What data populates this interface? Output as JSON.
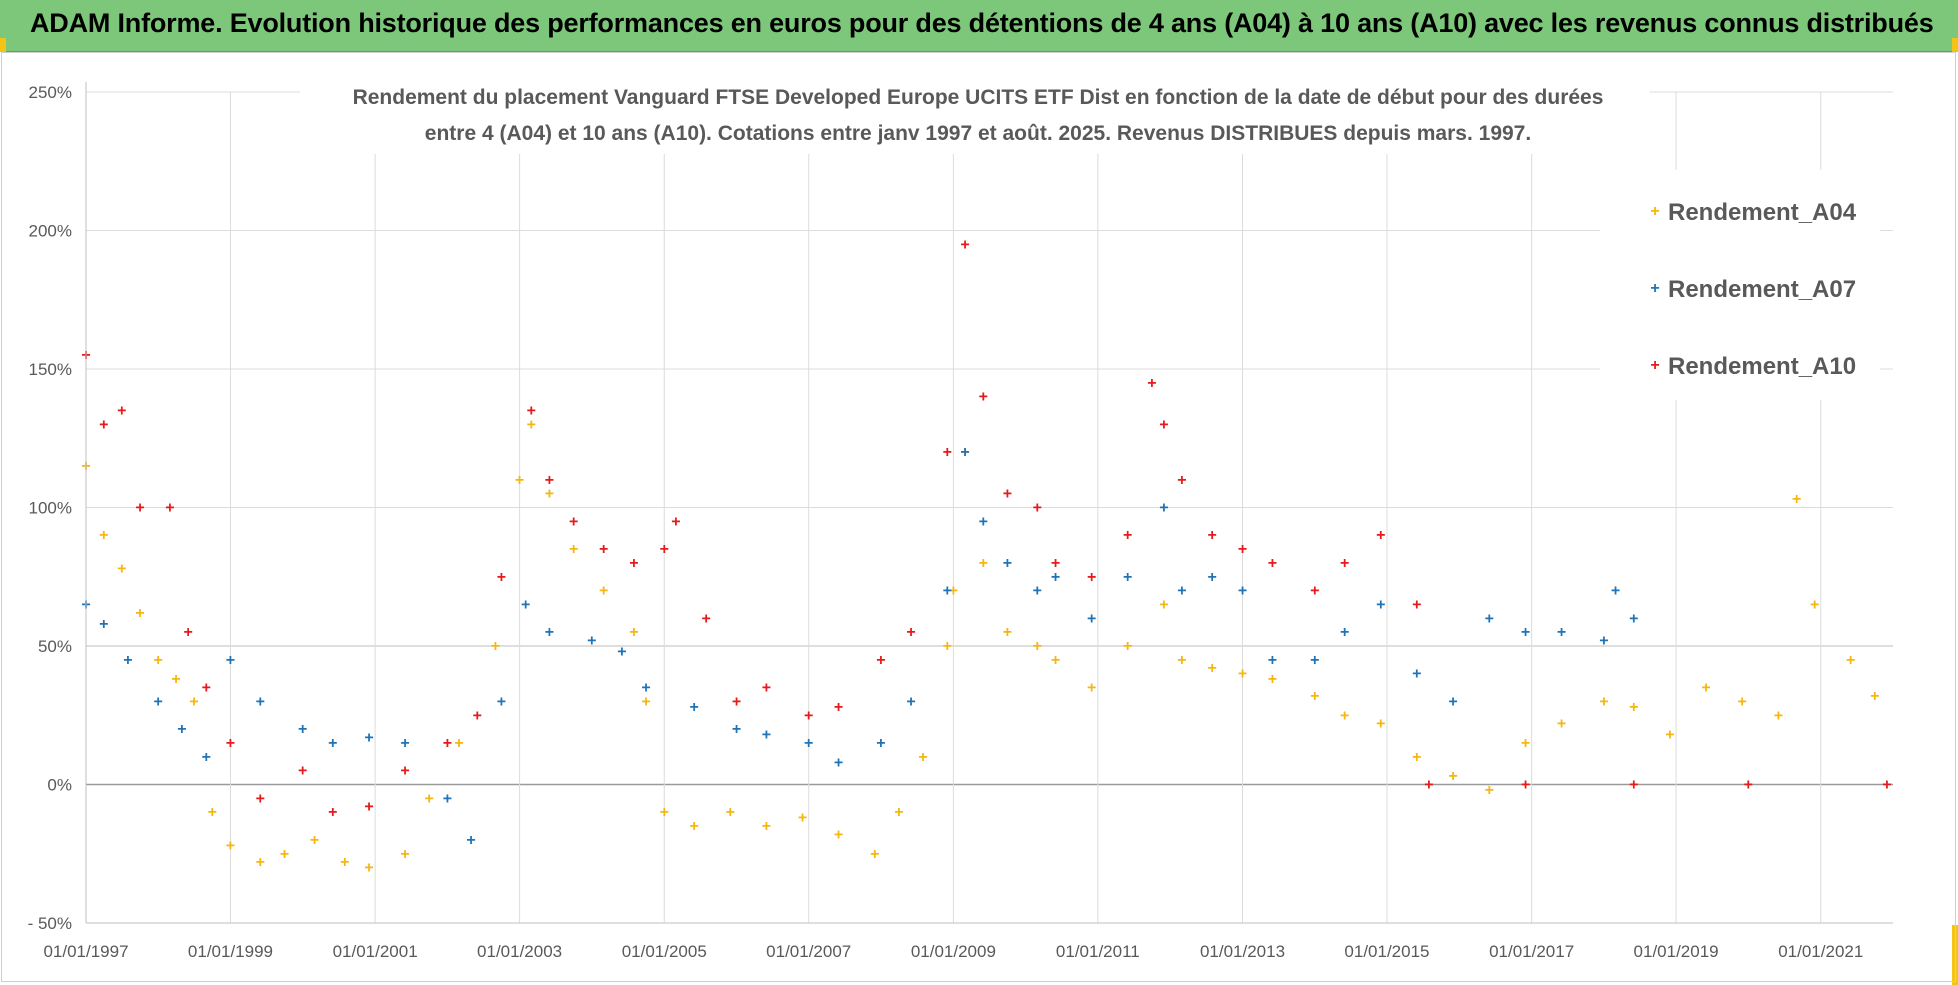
{
  "banner": {
    "title": "ADAM Informe. Evolution historique des performances en euros pour des détentions de 4 ans (A04) à 10 ans (A10) avec les revenus connus distribués",
    "background": "#7dc77a"
  },
  "chart_data": {
    "type": "scatter",
    "title_lines": [
      "Rendement du placement Vanguard FTSE Developed Europe UCITS ETF Dist en fonction de la date de début pour des durées",
      "entre 4 (A04) et 10 ans (A10). Cotations entre janv 1997 et août. 2025. Revenus DISTRIBUES depuis mars. 1997."
    ],
    "x_axis": {
      "type": "date",
      "range": [
        "1997-01-01",
        "2022-01-01"
      ],
      "tick_labels": [
        "01/01/1997",
        "01/01/1999",
        "01/01/2001",
        "01/01/2003",
        "01/01/2005",
        "01/01/2007",
        "01/01/2009",
        "01/01/2011",
        "01/01/2013",
        "01/01/2015",
        "01/01/2017",
        "01/01/2019",
        "01/01/2021"
      ],
      "tick_years": [
        1997,
        1999,
        2001,
        2003,
        2005,
        2007,
        2009,
        2011,
        2013,
        2015,
        2017,
        2019,
        2021
      ]
    },
    "y_axis": {
      "unit": "%",
      "range": [
        -50,
        250
      ],
      "tick_values": [
        -50,
        0,
        50,
        100,
        150,
        200,
        250
      ],
      "tick_labels": [
        "- 50%",
        "0%",
        "50%",
        "100%",
        "150%",
        "200%",
        "250%"
      ]
    },
    "grid": true,
    "legend_position": "top-right",
    "series": [
      {
        "name": "Rendement_A04",
        "color": "#f5b70f",
        "marker": "plus",
        "points": [
          [
            "1997-01-01",
            115
          ],
          [
            "1997-04-01",
            90
          ],
          [
            "1997-07-01",
            78
          ],
          [
            "1997-10-01",
            62
          ],
          [
            "1998-01-01",
            45
          ],
          [
            "1998-04-01",
            38
          ],
          [
            "1998-07-01",
            30
          ],
          [
            "1998-10-01",
            -10
          ],
          [
            "1999-01-01",
            -22
          ],
          [
            "1999-06-01",
            -28
          ],
          [
            "1999-10-01",
            -25
          ],
          [
            "2000-03-01",
            -20
          ],
          [
            "2000-08-01",
            -28
          ],
          [
            "2000-12-01",
            -30
          ],
          [
            "2001-06-01",
            -25
          ],
          [
            "2001-10-01",
            -5
          ],
          [
            "2002-03-01",
            15
          ],
          [
            "2002-09-01",
            50
          ],
          [
            "2003-01-01",
            110
          ],
          [
            "2003-03-01",
            130
          ],
          [
            "2003-06-01",
            105
          ],
          [
            "2003-10-01",
            85
          ],
          [
            "2004-03-01",
            70
          ],
          [
            "2004-08-01",
            55
          ],
          [
            "2004-10-01",
            30
          ],
          [
            "2005-01-01",
            -10
          ],
          [
            "2005-06-01",
            -15
          ],
          [
            "2005-12-01",
            -10
          ],
          [
            "2006-06-01",
            -15
          ],
          [
            "2006-12-01",
            -12
          ],
          [
            "2007-06-01",
            -18
          ],
          [
            "2007-12-01",
            -25
          ],
          [
            "2008-04-01",
            -10
          ],
          [
            "2008-08-01",
            10
          ],
          [
            "2008-12-01",
            50
          ],
          [
            "2009-01-01",
            70
          ],
          [
            "2009-03-01",
            120
          ],
          [
            "2009-06-01",
            80
          ],
          [
            "2009-10-01",
            55
          ],
          [
            "2010-03-01",
            50
          ],
          [
            "2010-06-01",
            45
          ],
          [
            "2010-12-01",
            35
          ],
          [
            "2011-06-01",
            50
          ],
          [
            "2011-12-01",
            65
          ],
          [
            "2012-03-01",
            45
          ],
          [
            "2012-08-01",
            42
          ],
          [
            "2013-01-01",
            40
          ],
          [
            "2013-06-01",
            38
          ],
          [
            "2014-01-01",
            32
          ],
          [
            "2014-06-01",
            25
          ],
          [
            "2014-12-01",
            22
          ],
          [
            "2015-06-01",
            10
          ],
          [
            "2015-12-01",
            3
          ],
          [
            "2016-06-01",
            -2
          ],
          [
            "2016-12-01",
            15
          ],
          [
            "2017-06-01",
            22
          ],
          [
            "2018-01-01",
            30
          ],
          [
            "2018-06-01",
            28
          ],
          [
            "2018-12-01",
            18
          ],
          [
            "2019-06-01",
            35
          ],
          [
            "2019-12-01",
            30
          ],
          [
            "2020-06-01",
            25
          ],
          [
            "2020-09-01",
            103
          ],
          [
            "2020-12-01",
            65
          ],
          [
            "2021-06-01",
            45
          ],
          [
            "2021-10-01",
            32
          ]
        ]
      },
      {
        "name": "Rendement_A07",
        "color": "#1f73b7",
        "marker": "plus",
        "points": [
          [
            "1997-01-01",
            65
          ],
          [
            "1997-04-01",
            58
          ],
          [
            "1997-08-01",
            45
          ],
          [
            "1998-01-01",
            30
          ],
          [
            "1998-05-01",
            20
          ],
          [
            "1998-09-01",
            10
          ],
          [
            "1999-01-01",
            45
          ],
          [
            "1999-06-01",
            30
          ],
          [
            "2000-01-01",
            20
          ],
          [
            "2000-06-01",
            15
          ],
          [
            "2000-12-01",
            17
          ],
          [
            "2001-06-01",
            15
          ],
          [
            "2002-01-01",
            -5
          ],
          [
            "2002-05-01",
            -20
          ],
          [
            "2002-10-01",
            30
          ],
          [
            "2003-02-01",
            65
          ],
          [
            "2003-06-01",
            55
          ],
          [
            "2004-01-01",
            52
          ],
          [
            "2004-06-01",
            48
          ],
          [
            "2004-10-01",
            35
          ],
          [
            "2005-06-01",
            28
          ],
          [
            "2006-01-01",
            20
          ],
          [
            "2006-06-01",
            18
          ],
          [
            "2007-01-01",
            15
          ],
          [
            "2007-06-01",
            8
          ],
          [
            "2008-01-01",
            15
          ],
          [
            "2008-06-01",
            30
          ],
          [
            "2008-12-01",
            70
          ],
          [
            "2009-03-01",
            120
          ],
          [
            "2009-06-01",
            95
          ],
          [
            "2009-10-01",
            80
          ],
          [
            "2010-03-01",
            70
          ],
          [
            "2010-06-01",
            75
          ],
          [
            "2010-12-01",
            60
          ],
          [
            "2011-06-01",
            75
          ],
          [
            "2011-12-01",
            100
          ],
          [
            "2012-03-01",
            70
          ],
          [
            "2012-08-01",
            75
          ],
          [
            "2013-01-01",
            70
          ],
          [
            "2013-06-01",
            45
          ],
          [
            "2014-01-01",
            45
          ],
          [
            "2014-06-01",
            55
          ],
          [
            "2014-12-01",
            65
          ],
          [
            "2015-06-01",
            40
          ],
          [
            "2015-12-01",
            30
          ],
          [
            "2016-06-01",
            60
          ],
          [
            "2016-12-01",
            55
          ],
          [
            "2017-06-01",
            55
          ],
          [
            "2018-01-01",
            52
          ],
          [
            "2018-03-01",
            70
          ],
          [
            "2018-06-01",
            60
          ]
        ]
      },
      {
        "name": "Rendement_A10",
        "color": "#e61a1a",
        "marker": "plus",
        "points": [
          [
            "1997-01-01",
            155
          ],
          [
            "1997-04-01",
            130
          ],
          [
            "1997-07-01",
            135
          ],
          [
            "1997-10-01",
            100
          ],
          [
            "1998-03-01",
            100
          ],
          [
            "1998-06-01",
            55
          ],
          [
            "1998-09-01",
            35
          ],
          [
            "1999-01-01",
            15
          ],
          [
            "1999-06-01",
            -5
          ],
          [
            "2000-01-01",
            5
          ],
          [
            "2000-06-01",
            -10
          ],
          [
            "2000-12-01",
            -8
          ],
          [
            "2001-06-01",
            5
          ],
          [
            "2002-01-01",
            15
          ],
          [
            "2002-06-01",
            25
          ],
          [
            "2002-10-01",
            75
          ],
          [
            "2003-03-01",
            135
          ],
          [
            "2003-06-01",
            110
          ],
          [
            "2003-10-01",
            95
          ],
          [
            "2004-03-01",
            85
          ],
          [
            "2004-08-01",
            80
          ],
          [
            "2005-01-01",
            85
          ],
          [
            "2005-03-01",
            95
          ],
          [
            "2005-08-01",
            60
          ],
          [
            "2006-01-01",
            30
          ],
          [
            "2006-06-01",
            35
          ],
          [
            "2007-01-01",
            25
          ],
          [
            "2007-06-01",
            28
          ],
          [
            "2008-01-01",
            45
          ],
          [
            "2008-06-01",
            55
          ],
          [
            "2008-12-01",
            120
          ],
          [
            "2009-03-01",
            195
          ],
          [
            "2009-06-01",
            140
          ],
          [
            "2009-10-01",
            105
          ],
          [
            "2010-03-01",
            100
          ],
          [
            "2010-06-01",
            80
          ],
          [
            "2010-12-01",
            75
          ],
          [
            "2011-06-01",
            90
          ],
          [
            "2011-10-01",
            145
          ],
          [
            "2011-12-01",
            130
          ],
          [
            "2012-03-01",
            110
          ],
          [
            "2012-08-01",
            90
          ],
          [
            "2013-01-01",
            85
          ],
          [
            "2013-06-01",
            80
          ],
          [
            "2014-01-01",
            70
          ],
          [
            "2014-06-01",
            80
          ],
          [
            "2014-12-01",
            90
          ],
          [
            "2015-06-01",
            65
          ],
          [
            "2015-08-01",
            0
          ],
          [
            "2016-12-01",
            0
          ],
          [
            "2018-06-01",
            0
          ],
          [
            "2020-01-01",
            0
          ],
          [
            "2021-12-01",
            0
          ]
        ]
      }
    ]
  }
}
